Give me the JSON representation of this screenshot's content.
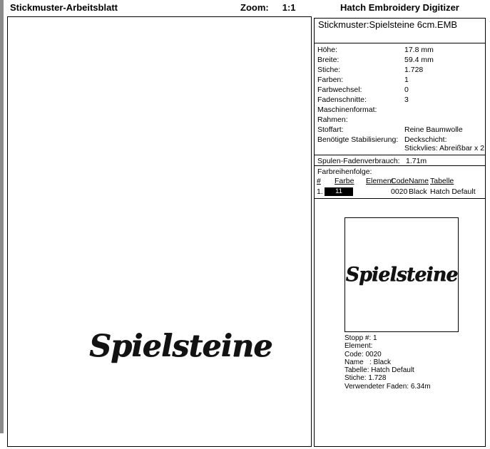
{
  "header": {
    "title": "Stickmuster-Arbeitsblatt",
    "zoom_label": "Zoom:",
    "zoom_value": "1:1",
    "app_name": "Hatch Embroidery Digitizer"
  },
  "canvas": {
    "design_text": "Spielsteine"
  },
  "panel": {
    "design_title": "Stickmuster:Spielsteine 6cm.EMB",
    "info_rows": [
      {
        "label": "Höhe:",
        "value": "17.8 mm"
      },
      {
        "label": "Breite:",
        "value": "59.4 mm"
      },
      {
        "label": "Stiche:",
        "value": "1.728"
      },
      {
        "label": "Farben:",
        "value": "1"
      },
      {
        "label": "Farbwechsel:",
        "value": "0"
      },
      {
        "label": "Fadenschnitte:",
        "value": "3"
      },
      {
        "label": "Maschinenformat:",
        "value": ""
      },
      {
        "label": "Rahmen:",
        "value": ""
      },
      {
        "label": "Stoffart:",
        "value": "Reine Baumwolle"
      },
      {
        "label": "Benötigte Stabilisierung:",
        "value": "Deckschicht:",
        "value2": "Stickvlies: Abreißbar x 2"
      }
    ],
    "bobbin_row": {
      "label": "Spulen-Fadenverbrauch:",
      "value": "1.71m"
    },
    "color_sequence": {
      "title": "Farbreihenfolge:",
      "columns": {
        "num": "#",
        "farbe": "Farbe",
        "element": "Element",
        "code": "Code",
        "name": "Name",
        "tabelle": "Tabelle"
      },
      "row": {
        "num": "1.",
        "swatch_label": "11",
        "swatch_color": "#000000",
        "element": "",
        "code": "0020",
        "name": "Black",
        "tabelle": "Hatch Default"
      }
    },
    "thumbnail_text": "Spielsteine",
    "stop_details": {
      "line1": "Stopp #: 1",
      "line2": "Element:",
      "line3": "Code: 0020",
      "line4": "Name   : Black",
      "line5": "Tabelle: Hatch Default",
      "line6": "Stiche: 1.728",
      "line7": "Verwendeter Faden: 6.34m"
    }
  }
}
